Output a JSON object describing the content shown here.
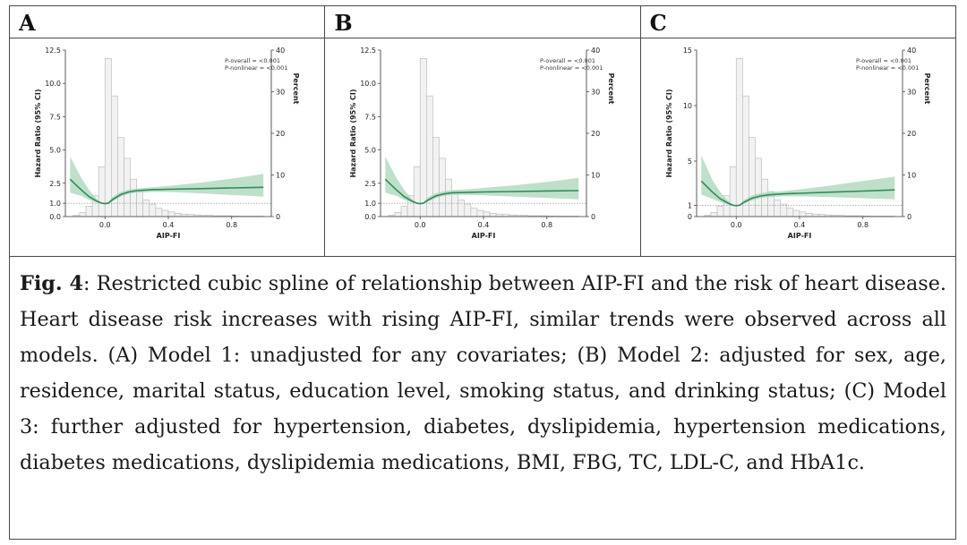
{
  "panels": [
    {
      "letter": "A"
    },
    {
      "letter": "B"
    },
    {
      "letter": "C"
    }
  ],
  "caption": {
    "fig_label": "Fig. 4",
    "text": ": Restricted cubic spline of relationship between AIP-FI and the risk of heart disease. Heart disease risk increases with rising AIP-FI, similar trends were observed across all models. (A) Model 1: unadjusted for any covariates; (B) Model 2: adjusted for sex, age, residence, marital status, education level, smoking status, and drinking status; (C) Model 3: further adjusted for hypertension, diabetes, dyslipidemia, hypertension medications, diabetes medications, dyslipidemia medications, BMI, FBG, TC, LDL-C, and HbA1c."
  },
  "colors": {
    "spline": "#2e8b57",
    "band": "#a8d5ba",
    "bar_fill": "#f2f2f2",
    "bar_stroke": "#b5b5b5",
    "ref_line": "#999999"
  },
  "chart_data": [
    {
      "type": "line",
      "panel": "A",
      "xlabel": "AIP-FI",
      "ylabel": "Hazard Ratio (95% CI)",
      "y2label": "Percent",
      "xticks": [
        "0.0",
        "0.4",
        "0.8"
      ],
      "xlim": [
        -0.25,
        1.05
      ],
      "yticks": [
        "0.0",
        "1.0",
        "2.5",
        "5.0",
        "7.5",
        "10.0",
        "12.5"
      ],
      "ylim": [
        0,
        12.5
      ],
      "y2ticks": [
        "0",
        "10",
        "20",
        "30",
        "40"
      ],
      "y2lim": [
        0,
        40
      ],
      "annotations": [
        "P-overall = <0.001",
        "P-nonlinear = <0.001"
      ],
      "reference_line": 1.0,
      "spline": {
        "x": [
          -0.22,
          -0.15,
          -0.1,
          -0.05,
          -0.02,
          0.0,
          0.02,
          0.05,
          0.1,
          0.15,
          0.2,
          0.3,
          0.4,
          0.6,
          0.8,
          1.0
        ],
        "y": [
          2.8,
          2.0,
          1.5,
          1.15,
          1.0,
          0.97,
          1.0,
          1.3,
          1.65,
          1.85,
          1.95,
          2.02,
          2.05,
          2.1,
          2.15,
          2.2
        ],
        "lower": [
          1.8,
          1.55,
          1.25,
          1.05,
          0.97,
          0.95,
          0.97,
          1.15,
          1.5,
          1.7,
          1.8,
          1.85,
          1.85,
          1.75,
          1.62,
          1.5
        ],
        "upper": [
          4.5,
          2.9,
          2.0,
          1.3,
          1.05,
          1.0,
          1.05,
          1.5,
          1.85,
          2.02,
          2.1,
          2.2,
          2.3,
          2.55,
          2.85,
          3.2
        ]
      },
      "histogram": {
        "bins": [
          -0.2,
          -0.16,
          -0.12,
          -0.08,
          -0.04,
          0.0,
          0.04,
          0.08,
          0.12,
          0.16,
          0.2,
          0.24,
          0.28,
          0.32,
          0.36,
          0.4,
          0.44,
          0.48,
          0.52,
          0.56,
          0.6,
          0.64,
          0.68,
          0.72,
          0.76,
          0.8,
          0.84,
          0.88,
          0.92,
          0.96
        ],
        "percent": [
          0.3,
          1,
          2.5,
          5,
          12,
          38,
          29,
          19,
          14,
          9,
          6,
          4,
          3,
          2,
          1.5,
          1.1,
          0.8,
          0.6,
          0.5,
          0.4,
          0.3,
          0.3,
          0.2,
          0.2,
          0.2,
          0.15,
          0.1,
          0.1,
          0.1,
          0.1
        ]
      }
    },
    {
      "type": "line",
      "panel": "B",
      "xlabel": "AIP-FI",
      "ylabel": "Hazard Ratio (95% CI)",
      "y2label": "Percent",
      "xticks": [
        "0.0",
        "0.4",
        "0.8"
      ],
      "xlim": [
        -0.25,
        1.05
      ],
      "yticks": [
        "0.0",
        "1.0",
        "2.5",
        "5.0",
        "7.5",
        "10.0",
        "12.5"
      ],
      "ylim": [
        0,
        12.5
      ],
      "y2ticks": [
        "0",
        "10",
        "20",
        "30",
        "40"
      ],
      "y2lim": [
        0,
        40
      ],
      "annotations": [
        "P-overall = <0.001",
        "P-nonlinear = <0.001"
      ],
      "reference_line": 1.0,
      "spline": {
        "x": [
          -0.22,
          -0.15,
          -0.1,
          -0.05,
          -0.02,
          0.0,
          0.02,
          0.05,
          0.1,
          0.15,
          0.2,
          0.3,
          0.4,
          0.6,
          0.8,
          1.0
        ],
        "y": [
          2.8,
          2.0,
          1.5,
          1.15,
          1.0,
          0.97,
          1.0,
          1.25,
          1.55,
          1.7,
          1.78,
          1.82,
          1.85,
          1.88,
          1.92,
          1.95
        ],
        "lower": [
          1.8,
          1.55,
          1.25,
          1.05,
          0.97,
          0.95,
          0.97,
          1.1,
          1.4,
          1.55,
          1.62,
          1.62,
          1.6,
          1.5,
          1.4,
          1.3
        ],
        "upper": [
          4.5,
          2.9,
          2.0,
          1.3,
          1.05,
          1.0,
          1.05,
          1.45,
          1.75,
          1.9,
          1.98,
          2.05,
          2.15,
          2.35,
          2.6,
          2.9
        ]
      },
      "histogram": {
        "bins": [
          -0.2,
          -0.16,
          -0.12,
          -0.08,
          -0.04,
          0.0,
          0.04,
          0.08,
          0.12,
          0.16,
          0.2,
          0.24,
          0.28,
          0.32,
          0.36,
          0.4,
          0.44,
          0.48,
          0.52,
          0.56,
          0.6,
          0.64,
          0.68,
          0.72,
          0.76,
          0.8,
          0.84,
          0.88,
          0.92,
          0.96
        ],
        "percent": [
          0.3,
          1,
          2.5,
          5,
          12,
          38,
          29,
          19,
          14,
          9,
          6,
          4,
          3,
          2,
          1.5,
          1.1,
          0.8,
          0.6,
          0.5,
          0.4,
          0.3,
          0.3,
          0.2,
          0.2,
          0.2,
          0.15,
          0.1,
          0.1,
          0.1,
          0.1
        ]
      }
    },
    {
      "type": "line",
      "panel": "C",
      "xlabel": "AIP-FI",
      "ylabel": "Hazard Ratio (95% CI)",
      "y2label": "Percent",
      "xticks": [
        "0.0",
        "0.4",
        "0.8"
      ],
      "xlim": [
        -0.25,
        1.05
      ],
      "yticks": [
        "0",
        "1",
        "5",
        "10",
        "15"
      ],
      "ytick_values": [
        0,
        1,
        5,
        10,
        15
      ],
      "ylim": [
        0,
        15
      ],
      "y2ticks": [
        "0",
        "10",
        "20",
        "30",
        "40"
      ],
      "y2lim": [
        0,
        40
      ],
      "annotations": [
        "P-overall = <0.001",
        "P-nonlinear = <0.001"
      ],
      "reference_line": 1.0,
      "spline": {
        "x": [
          -0.22,
          -0.15,
          -0.1,
          -0.05,
          -0.02,
          0.0,
          0.02,
          0.05,
          0.1,
          0.15,
          0.2,
          0.3,
          0.4,
          0.6,
          0.8,
          1.0
        ],
        "y": [
          3.2,
          2.2,
          1.6,
          1.2,
          1.02,
          0.98,
          1.02,
          1.3,
          1.65,
          1.85,
          1.95,
          2.05,
          2.1,
          2.2,
          2.3,
          2.4
        ],
        "lower": [
          2.0,
          1.6,
          1.3,
          1.08,
          0.98,
          0.96,
          0.98,
          1.15,
          1.45,
          1.65,
          1.75,
          1.82,
          1.82,
          1.75,
          1.65,
          1.55
        ],
        "upper": [
          5.5,
          3.3,
          2.2,
          1.4,
          1.07,
          1.01,
          1.07,
          1.5,
          1.9,
          2.1,
          2.2,
          2.3,
          2.45,
          2.8,
          3.2,
          3.6
        ]
      },
      "histogram": {
        "bins": [
          -0.2,
          -0.16,
          -0.12,
          -0.08,
          -0.04,
          0.0,
          0.04,
          0.08,
          0.12,
          0.16,
          0.2,
          0.24,
          0.28,
          0.32,
          0.36,
          0.4,
          0.44,
          0.48,
          0.52,
          0.56,
          0.6,
          0.64,
          0.68,
          0.72,
          0.76,
          0.8,
          0.84,
          0.88,
          0.92,
          0.96
        ],
        "percent": [
          0.3,
          1,
          2.5,
          5,
          12,
          38,
          29,
          19,
          14,
          9,
          6,
          4,
          3,
          2,
          1.5,
          1.1,
          0.8,
          0.6,
          0.5,
          0.4,
          0.3,
          0.3,
          0.2,
          0.2,
          0.2,
          0.15,
          0.1,
          0.1,
          0.1,
          0.1
        ]
      }
    }
  ]
}
